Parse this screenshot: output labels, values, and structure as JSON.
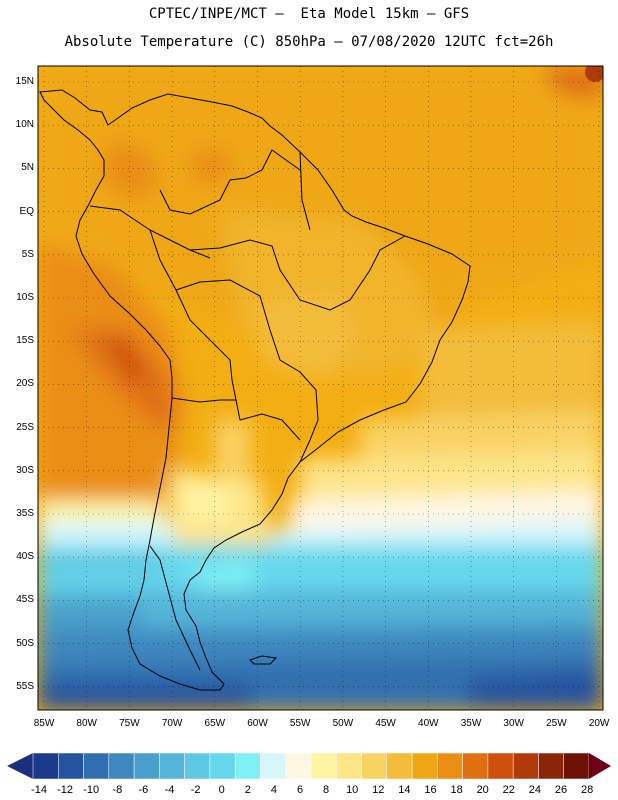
{
  "header": {
    "line1": "CPTEC/INPE/MCT –  Eta Model 15km – GFS",
    "line2": "Absolute Temperature (C) 850hPa – 07/08/2020 12UTC fct=26h"
  },
  "map": {
    "lat_labels": [
      "15N",
      "10N",
      "5N",
      "EQ",
      "5S",
      "10S",
      "15S",
      "20S",
      "25S",
      "30S",
      "35S",
      "40S",
      "45S",
      "50S",
      "55S"
    ],
    "lon_labels": [
      "85W",
      "80W",
      "75W",
      "70W",
      "65W",
      "60W",
      "55W",
      "50W",
      "45W",
      "40W",
      "35W",
      "30W",
      "25W",
      "20W"
    ],
    "grid": "dotted",
    "coastline_color": "#000000"
  },
  "colorbar": {
    "ticks": [
      "-14",
      "-12",
      "-10",
      "-8",
      "-6",
      "-4",
      "-2",
      "0",
      "2",
      "4",
      "6",
      "8",
      "10",
      "12",
      "14",
      "16",
      "18",
      "20",
      "22",
      "24",
      "26",
      "28"
    ],
    "colors": [
      "#1a3b8c",
      "#2653a0",
      "#3070b0",
      "#3d88bf",
      "#4aa0cc",
      "#55b5d9",
      "#5fc8e3",
      "#66d8ed",
      "#7ff0f5",
      "#d6f6fb",
      "#fff7e3",
      "#fff4a3",
      "#fde58a",
      "#f9d264",
      "#f3bc3a",
      "#efa714",
      "#ea8e14",
      "#e06f12",
      "#cf4f0d",
      "#b03a0a",
      "#8b2508",
      "#6e1206"
    ],
    "arrow_low_color": "#1c2f7c",
    "arrow_high_color": "#6e0018"
  }
}
